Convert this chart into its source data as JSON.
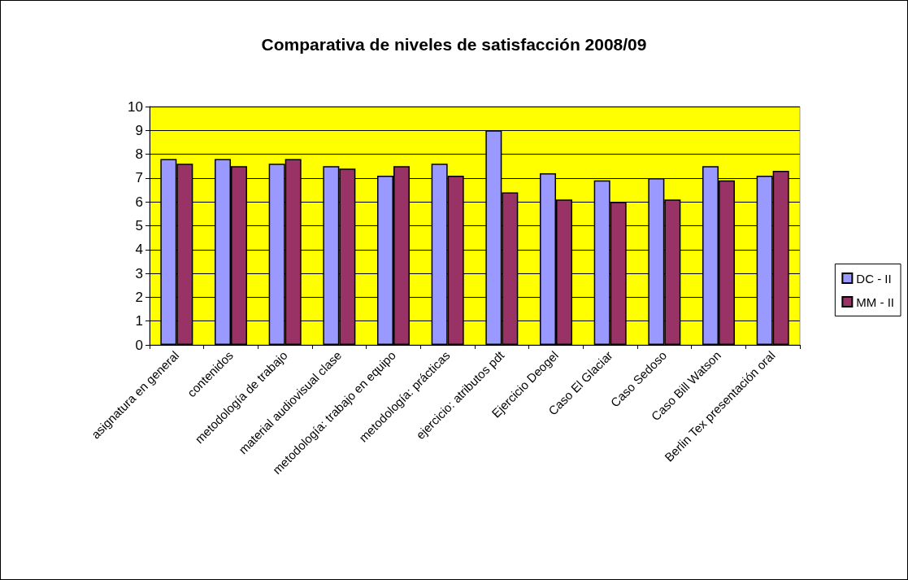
{
  "chart_data": {
    "type": "bar",
    "title": "Comparativa de niveles de satisfacción 2008/09",
    "categories": [
      "asignatura en general",
      "contenidos",
      "metodología de trabajo",
      "material audiovisual clase",
      "metodología: trabajo en equipo",
      "metodología: prácticas",
      "ejercicio: atributos pdt",
      "Ejercicio Deogel",
      "Caso El Glaciar",
      "Caso Sedoso",
      "Caso Bill Watson",
      "Berlin Tex presentación oral"
    ],
    "series": [
      {
        "name": "DC - II",
        "color": "#9999ff",
        "values": [
          7.8,
          7.8,
          7.6,
          7.5,
          7.1,
          7.6,
          9.0,
          7.2,
          6.9,
          7.0,
          7.5,
          7.1
        ]
      },
      {
        "name": "MM - II",
        "color": "#993366",
        "values": [
          7.6,
          7.5,
          7.8,
          7.4,
          7.5,
          7.1,
          6.4,
          6.1,
          6.0,
          6.1,
          6.9,
          7.3
        ]
      }
    ],
    "ylim": [
      0,
      10
    ],
    "yticks": [
      0,
      1,
      2,
      3,
      4,
      5,
      6,
      7,
      8,
      9,
      10
    ],
    "grid": "y",
    "legend": "right"
  }
}
